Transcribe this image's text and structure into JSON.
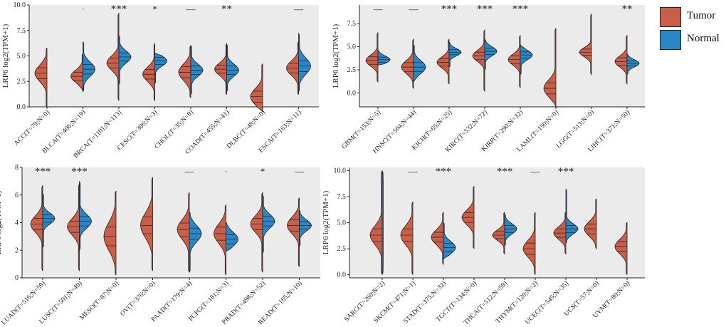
{
  "figure": {
    "colors": {
      "tumor": "#c95f48",
      "normal": "#2a87c7",
      "panel_bg": "#ebebeb"
    },
    "legend": [
      {
        "label": "Tumor",
        "color": "#c95f48"
      },
      {
        "label": "Normal",
        "color": "#2a87c7"
      }
    ]
  },
  "chart_data": [
    {
      "type": "split-violin",
      "ylabel": "LRP6  log2(TPM+1)",
      "ylim": [
        0,
        10
      ],
      "yticks": [
        "0.0",
        "2.5",
        "5.0",
        "7.5",
        "10.0"
      ],
      "categories": [
        {
          "label": "ACC(T=79;N=0)",
          "sig": "",
          "tumor": {
            "min": 0.0,
            "max": 5.8,
            "median": 3.3,
            "sd": 0.8
          },
          "normal": null
        },
        {
          "label": "BLCA(T=406;N=19)",
          "sig": "·",
          "tumor": {
            "min": 1.6,
            "max": 5.2,
            "median": 3.0,
            "sd": 0.6
          },
          "normal": {
            "min": 1.5,
            "max": 6.4,
            "median": 3.7,
            "sd": 0.7
          }
        },
        {
          "label": "BRCA(T=1101;N=113)",
          "sig": "***",
          "tumor": {
            "min": 0.6,
            "max": 9.2,
            "median": 4.3,
            "sd": 0.7
          },
          "normal": {
            "min": 2.2,
            "max": 7.0,
            "median": 4.9,
            "sd": 0.6
          }
        },
        {
          "label": "CESC(T=306;N=3)",
          "sig": "*",
          "tumor": {
            "min": 0.6,
            "max": 6.2,
            "median": 3.2,
            "sd": 0.7
          },
          "normal": {
            "min": 2.3,
            "max": 5.3,
            "median": 4.5,
            "sd": 0.5
          }
        },
        {
          "label": "CHOL(T=35;N=9)",
          "sig": "—",
          "tumor": {
            "min": 0.9,
            "max": 6.0,
            "median": 3.4,
            "sd": 0.8
          },
          "normal": {
            "min": 1.2,
            "max": 6.0,
            "median": 3.6,
            "sd": 0.6
          }
        },
        {
          "label": "COAD(T=455;N=41)",
          "sig": "**",
          "tumor": {
            "min": 1.2,
            "max": 6.2,
            "median": 3.7,
            "sd": 0.6
          },
          "normal": {
            "min": 1.5,
            "max": 6.1,
            "median": 3.6,
            "sd": 0.6
          }
        },
        {
          "label": "DLBC(T=48;N=0)",
          "sig": "",
          "tumor": {
            "min": -0.5,
            "max": 4.2,
            "median": 1.0,
            "sd": 0.8
          },
          "normal": null
        },
        {
          "label": "ESCA(T=163;N=11)",
          "sig": "—",
          "tumor": {
            "min": 1.2,
            "max": 6.4,
            "median": 3.8,
            "sd": 0.7
          },
          "normal": {
            "min": 1.5,
            "max": 7.2,
            "median": 4.0,
            "sd": 0.8
          }
        }
      ]
    },
    {
      "type": "split-violin",
      "ylabel": "LRP6  log2(TPM+1)",
      "ylim": [
        -1.5,
        9.5
      ],
      "yticks": [
        "0.0",
        "2.5",
        "5.0",
        "7.5"
      ],
      "categories": [
        {
          "label": "GBM(T=153;N=5)",
          "sig": "—",
          "tumor": {
            "min": 1.2,
            "max": 6.5,
            "median": 3.5,
            "sd": 0.6
          },
          "normal": {
            "min": 3.0,
            "max": 4.6,
            "median": 3.6,
            "sd": 0.4
          }
        },
        {
          "label": "HNSC(T=504;N=44)",
          "sig": "—",
          "tumor": {
            "min": 0.5,
            "max": 5.8,
            "median": 2.8,
            "sd": 0.7
          },
          "normal": {
            "min": 1.2,
            "max": 5.2,
            "median": 2.8,
            "sd": 0.7
          }
        },
        {
          "label": "KICH(T=65;N=25)",
          "sig": "***",
          "tumor": {
            "min": 1.0,
            "max": 5.8,
            "median": 3.3,
            "sd": 0.6
          },
          "normal": {
            "min": 2.8,
            "max": 5.5,
            "median": 4.4,
            "sd": 0.4
          }
        },
        {
          "label": "KIRC(T=532;N=72)",
          "sig": "***",
          "tumor": {
            "min": 0.2,
            "max": 6.8,
            "median": 4.0,
            "sd": 0.6
          },
          "normal": {
            "min": 2.5,
            "max": 5.8,
            "median": 4.5,
            "sd": 0.5
          }
        },
        {
          "label": "KIRP(T=290;N=32)",
          "sig": "***",
          "tumor": {
            "min": 0.6,
            "max": 6.2,
            "median": 3.6,
            "sd": 0.6
          },
          "normal": {
            "min": 2.0,
            "max": 5.2,
            "median": 4.1,
            "sd": 0.5
          }
        },
        {
          "label": "LAML(T=150;N=0)",
          "sig": "",
          "tumor": {
            "min": -1.5,
            "max": 7.0,
            "median": 0.5,
            "sd": 0.9
          },
          "normal": null
        },
        {
          "label": "LGG(T=513;N=0)",
          "sig": "",
          "tumor": {
            "min": 2.0,
            "max": 8.5,
            "median": 4.4,
            "sd": 0.5
          },
          "normal": null
        },
        {
          "label": "LIHC(T=371;N=50)",
          "sig": "**",
          "tumor": {
            "min": 1.0,
            "max": 6.2,
            "median": 3.4,
            "sd": 0.6
          },
          "normal": {
            "min": 2.0,
            "max": 4.2,
            "median": 3.2,
            "sd": 0.4
          }
        }
      ]
    },
    {
      "type": "split-violin",
      "ylabel": "LRP6  log2(TPM+1)",
      "ylim": [
        0,
        8
      ],
      "yticks": [
        "0",
        "2",
        "4",
        "6",
        "8"
      ],
      "categories": [
        {
          "label": "LUAD(T=516;N=59)",
          "sig": "***",
          "tumor": {
            "min": 0.5,
            "max": 6.7,
            "median": 3.9,
            "sd": 0.6
          },
          "normal": {
            "min": 2.2,
            "max": 6.1,
            "median": 4.3,
            "sd": 0.4
          }
        },
        {
          "label": "LUSC(T=501;N=49)",
          "sig": "***",
          "tumor": {
            "min": 0.5,
            "max": 6.8,
            "median": 3.7,
            "sd": 0.6
          },
          "normal": {
            "min": 2.0,
            "max": 7.0,
            "median": 4.1,
            "sd": 0.5
          }
        },
        {
          "label": "MESO(T=87;N=0)",
          "sig": "",
          "tumor": {
            "min": 0.2,
            "max": 6.3,
            "median": 3.0,
            "sd": 1.0
          },
          "normal": null
        },
        {
          "label": "OV(T=376;N=0)",
          "sig": "",
          "tumor": {
            "min": 0.5,
            "max": 7.3,
            "median": 3.8,
            "sd": 0.9
          },
          "normal": null
        },
        {
          "label": "PAAD(T=179;N=4)",
          "sig": "—",
          "tumor": {
            "min": 0.4,
            "max": 6.2,
            "median": 3.5,
            "sd": 0.7
          },
          "normal": {
            "min": 0.4,
            "max": 4.8,
            "median": 3.2,
            "sd": 0.6
          }
        },
        {
          "label": "PCPG(T=181;N=3)",
          "sig": "·",
          "tumor": {
            "min": 0.2,
            "max": 5.3,
            "median": 3.2,
            "sd": 0.7
          },
          "normal": {
            "min": 1.9,
            "max": 4.0,
            "median": 2.8,
            "sd": 0.5
          }
        },
        {
          "label": "PRAD(T=498;N=52)",
          "sig": "*",
          "tumor": {
            "min": 0.4,
            "max": 6.2,
            "median": 3.9,
            "sd": 0.6
          },
          "normal": {
            "min": 1.8,
            "max": 6.0,
            "median": 4.1,
            "sd": 0.5
          }
        },
        {
          "label": "READ(T=165;N=10)",
          "sig": "—",
          "tumor": {
            "min": 0.8,
            "max": 5.8,
            "median": 3.8,
            "sd": 0.6
          },
          "normal": {
            "min": 2.3,
            "max": 4.9,
            "median": 3.8,
            "sd": 0.4
          }
        }
      ]
    },
    {
      "type": "split-violin",
      "ylabel": "LRP6  log2(TPM+1)",
      "ylim": [
        -0.3,
        10.3
      ],
      "yticks": [
        "0.0",
        "2.5",
        "5.0",
        "7.5",
        "10.0"
      ],
      "categories": [
        {
          "label": "SARC(T=260;N=2)",
          "sig": "",
          "tumor": {
            "min": 0.0,
            "max": 10.0,
            "median": 3.8,
            "sd": 0.9
          },
          "normal": {
            "min": 0.0,
            "max": 10.0,
            "median": 3.5,
            "sd": 0.0
          }
        },
        {
          "label": "SKCM(T=471;N=1)",
          "sig": "—",
          "tumor": {
            "min": 0.0,
            "max": 7.0,
            "median": 3.8,
            "sd": 0.9
          },
          "normal": null
        },
        {
          "label": "STAD(T=375;N=32)",
          "sig": "***",
          "tumor": {
            "min": 1.0,
            "max": 6.0,
            "median": 3.6,
            "sd": 0.7
          },
          "normal": {
            "min": 1.5,
            "max": 5.0,
            "median": 2.6,
            "sd": 0.6
          }
        },
        {
          "label": "TGCT(T=134;N=0)",
          "sig": "",
          "tumor": {
            "min": 2.5,
            "max": 8.5,
            "median": 5.5,
            "sd": 0.7
          },
          "normal": null
        },
        {
          "label": "THCA(T=512;N=59)",
          "sig": "***",
          "tumor": {
            "min": 2.0,
            "max": 6.0,
            "median": 3.8,
            "sd": 0.5
          },
          "normal": {
            "min": 2.8,
            "max": 5.8,
            "median": 4.4,
            "sd": 0.5
          }
        },
        {
          "label": "THYM(T=120;N=2)",
          "sig": "—",
          "tumor": {
            "min": 0.0,
            "max": 6.0,
            "median": 2.5,
            "sd": 0.8
          },
          "normal": null
        },
        {
          "label": "UCEC(T=545;N=35)",
          "sig": "***",
          "tumor": {
            "min": 2.0,
            "max": 6.0,
            "median": 4.0,
            "sd": 0.6
          },
          "normal": {
            "min": 3.0,
            "max": 8.2,
            "median": 4.4,
            "sd": 0.5
          }
        },
        {
          "label": "UCS(T=57;N=0)",
          "sig": "",
          "tumor": {
            "min": 2.5,
            "max": 7.3,
            "median": 4.4,
            "sd": 0.7
          },
          "normal": null
        },
        {
          "label": "UVM(T=80;N=0)",
          "sig": "",
          "tumor": {
            "min": 0.0,
            "max": 5.0,
            "median": 2.7,
            "sd": 0.7
          },
          "normal": null
        }
      ]
    }
  ]
}
